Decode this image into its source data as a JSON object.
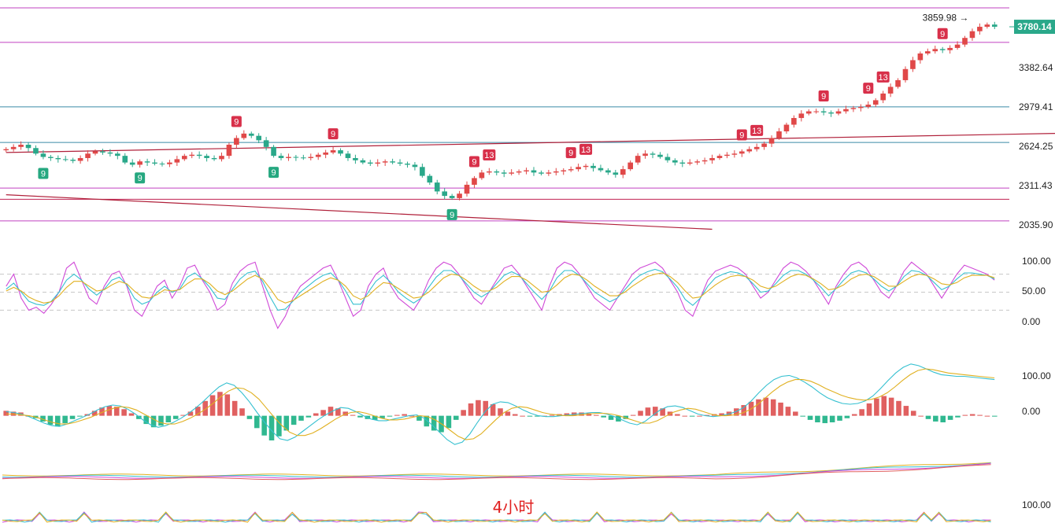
{
  "chart_data": {
    "type": "candlestick",
    "timeframe_label": "4小时",
    "last_price": "3780.14",
    "high_marker": "3859.98",
    "price_axis": {
      "ticks": [
        "3382.64",
        "2979.41",
        "2624.25",
        "2311.43",
        "2035.90"
      ],
      "ylim": [
        1900,
        3950
      ]
    },
    "horizontal_levels": [
      {
        "price": 3950,
        "color": "#c040c0"
      },
      {
        "price": 3640,
        "color": "#c040c0"
      },
      {
        "price": 3060,
        "color": "#3a8aa8"
      },
      {
        "price": 2740,
        "color": "#3a8aa8"
      },
      {
        "price": 2330,
        "color": "#c040c0"
      },
      {
        "price": 2230,
        "color": "#c02050"
      },
      {
        "price": 2035,
        "color": "#c040c0"
      }
    ],
    "trend_lines": [
      {
        "from": [
          0,
          2650
        ],
        "to": [
          280,
          2990
        ],
        "color": "#b0203a"
      },
      {
        "from": [
          0,
          2270
        ],
        "to": [
          95,
          1960
        ],
        "color": "#b0203a"
      }
    ],
    "close_series": [
      2680,
      2700,
      2720,
      2690,
      2640,
      2610,
      2600,
      2590,
      2585,
      2575,
      2600,
      2640,
      2660,
      2650,
      2640,
      2620,
      2560,
      2540,
      2570,
      2560,
      2550,
      2545,
      2560,
      2590,
      2620,
      2630,
      2620,
      2600,
      2590,
      2620,
      2720,
      2780,
      2820,
      2800,
      2760,
      2700,
      2620,
      2600,
      2610,
      2605,
      2600,
      2610,
      2630,
      2650,
      2670,
      2640,
      2600,
      2580,
      2560,
      2550,
      2560,
      2570,
      2560,
      2550,
      2540,
      2520,
      2440,
      2380,
      2300,
      2260,
      2240,
      2280,
      2360,
      2420,
      2470,
      2480,
      2470,
      2460,
      2470,
      2480,
      2490,
      2470,
      2460,
      2470,
      2480,
      2490,
      2500,
      2520,
      2530,
      2510,
      2490,
      2470,
      2450,
      2500,
      2560,
      2620,
      2640,
      2630,
      2610,
      2580,
      2560,
      2550,
      2560,
      2570,
      2580,
      2600,
      2620,
      2630,
      2640,
      2660,
      2680,
      2700,
      2730,
      2780,
      2840,
      2900,
      2960,
      3000,
      3020,
      3020,
      3010,
      3000,
      3020,
      3040,
      3050,
      3060,
      3080,
      3120,
      3180,
      3240,
      3300,
      3400,
      3480,
      3540,
      3560,
      3580,
      3570,
      3590,
      3620,
      3680,
      3740,
      3780,
      3800,
      3780
    ],
    "td_sequential": [
      {
        "index": 5,
        "label": "9",
        "kind": "buy"
      },
      {
        "index": 18,
        "label": "9",
        "kind": "buy"
      },
      {
        "index": 31,
        "label": "9",
        "kind": "sell"
      },
      {
        "index": 36,
        "label": "9",
        "kind": "buy"
      },
      {
        "index": 44,
        "label": "9",
        "kind": "sell"
      },
      {
        "index": 60,
        "label": "9",
        "kind": "buy"
      },
      {
        "index": 63,
        "label": "9",
        "kind": "sell"
      },
      {
        "index": 65,
        "label": "13",
        "kind": "sell"
      },
      {
        "index": 76,
        "label": "9",
        "kind": "sell"
      },
      {
        "index": 78,
        "label": "13",
        "kind": "sell"
      },
      {
        "index": 99,
        "label": "9",
        "kind": "sell"
      },
      {
        "index": 101,
        "label": "13",
        "kind": "sell"
      },
      {
        "index": 110,
        "label": "9",
        "kind": "sell"
      },
      {
        "index": 116,
        "label": "9",
        "kind": "sell"
      },
      {
        "index": 118,
        "label": "13",
        "kind": "sell"
      },
      {
        "index": 126,
        "label": "9",
        "kind": "sell"
      }
    ],
    "oscillator_1": {
      "ticks": [
        "100.00",
        "50.00",
        "0.00"
      ],
      "ylim": [
        -20,
        120
      ],
      "dashed_levels": [
        80,
        50,
        20
      ],
      "series": [
        {
          "color": "#d04ad8",
          "values": [
            60,
            80,
            40,
            20,
            25,
            15,
            30,
            50,
            90,
            100,
            70,
            40,
            30,
            60,
            80,
            85,
            60,
            20,
            10,
            35,
            60,
            70,
            40,
            60,
            90,
            95,
            70,
            50,
            20,
            30,
            65,
            85,
            95,
            100,
            60,
            20,
            -10,
            10,
            40,
            60,
            70,
            80,
            90,
            95,
            70,
            40,
            10,
            20,
            60,
            80,
            90,
            60,
            40,
            30,
            20,
            40,
            70,
            90,
            100,
            95,
            80,
            60,
            40,
            30,
            50,
            70,
            90,
            95,
            80,
            60,
            40,
            20,
            60,
            90,
            100,
            95,
            80,
            60,
            40,
            30,
            20,
            40,
            60,
            80,
            90,
            95,
            100,
            90,
            70,
            50,
            20,
            10,
            40,
            70,
            85,
            90,
            95,
            90,
            80,
            60,
            40,
            50,
            70,
            90,
            100,
            95,
            85,
            70,
            50,
            30,
            60,
            80,
            95,
            100,
            90,
            70,
            50,
            40,
            60,
            85,
            100,
            90,
            80,
            60,
            40,
            60,
            80,
            95,
            90,
            85,
            80,
            70
          ]
        },
        {
          "color": "#35c0d0",
          "values": [
            55,
            65,
            50,
            35,
            30,
            28,
            35,
            50,
            70,
            80,
            70,
            55,
            45,
            55,
            70,
            75,
            62,
            40,
            30,
            35,
            50,
            60,
            50,
            55,
            75,
            82,
            72,
            58,
            40,
            38,
            55,
            72,
            82,
            85,
            68,
            42,
            20,
            22,
            35,
            50,
            60,
            70,
            78,
            82,
            70,
            52,
            30,
            30,
            50,
            68,
            78,
            66,
            50,
            40,
            32,
            40,
            58,
            75,
            86,
            86,
            78,
            64,
            50,
            42,
            50,
            64,
            78,
            84,
            78,
            64,
            50,
            38,
            52,
            74,
            86,
            86,
            78,
            64,
            50,
            42,
            34,
            40,
            54,
            68,
            78,
            84,
            88,
            84,
            72,
            58,
            38,
            28,
            40,
            60,
            74,
            80,
            84,
            82,
            76,
            64,
            50,
            52,
            64,
            78,
            86,
            86,
            80,
            70,
            58,
            44,
            56,
            70,
            82,
            86,
            82,
            72,
            60,
            52,
            60,
            76,
            86,
            84,
            78,
            66,
            54,
            60,
            72,
            82,
            82,
            80,
            78,
            72
          ]
        },
        {
          "color": "#e0b020",
          "values": [
            52,
            58,
            52,
            42,
            36,
            32,
            34,
            44,
            58,
            68,
            68,
            60,
            52,
            54,
            62,
            68,
            64,
            52,
            42,
            40,
            46,
            54,
            52,
            54,
            64,
            72,
            72,
            64,
            52,
            46,
            52,
            62,
            72,
            78,
            72,
            56,
            38,
            32,
            36,
            44,
            52,
            60,
            68,
            74,
            70,
            60,
            44,
            38,
            44,
            56,
            66,
            64,
            56,
            48,
            40,
            42,
            50,
            62,
            74,
            80,
            78,
            70,
            60,
            52,
            52,
            58,
            68,
            76,
            76,
            70,
            60,
            50,
            52,
            62,
            74,
            80,
            78,
            70,
            60,
            52,
            44,
            44,
            50,
            60,
            68,
            76,
            80,
            82,
            76,
            66,
            52,
            40,
            42,
            52,
            62,
            70,
            76,
            78,
            76,
            70,
            60,
            56,
            60,
            68,
            76,
            80,
            78,
            72,
            64,
            54,
            56,
            62,
            72,
            78,
            80,
            76,
            68,
            60,
            60,
            68,
            76,
            80,
            78,
            72,
            64,
            62,
            66,
            74,
            78,
            78,
            78,
            74
          ]
        }
      ]
    },
    "oscillator_2": {
      "ticks": [
        "100.00",
        "0.00"
      ],
      "ylim": [
        -60,
        160
      ],
      "histogram": [
        12,
        10,
        8,
        0,
        -6,
        -14,
        -22,
        -26,
        -18,
        -8,
        -2,
        4,
        12,
        20,
        24,
        22,
        16,
        6,
        -8,
        -20,
        -28,
        -24,
        -16,
        -8,
        2,
        10,
        22,
        36,
        50,
        58,
        52,
        36,
        18,
        -8,
        -30,
        -48,
        -60,
        -50,
        -36,
        -22,
        -12,
        -4,
        6,
        14,
        22,
        18,
        10,
        2,
        -4,
        -8,
        -10,
        -6,
        -2,
        2,
        4,
        0,
        -12,
        -26,
        -36,
        -40,
        -30,
        -10,
        14,
        30,
        38,
        36,
        28,
        18,
        10,
        4,
        0,
        -2,
        -2,
        0,
        2,
        4,
        6,
        8,
        8,
        6,
        2,
        -4,
        -10,
        -14,
        -8,
        2,
        12,
        20,
        22,
        18,
        10,
        4,
        0,
        -2,
        0,
        2,
        4,
        6,
        10,
        18,
        26,
        34,
        40,
        44,
        40,
        32,
        22,
        10,
        -2,
        -10,
        -16,
        -18,
        -16,
        -12,
        -6,
        4,
        16,
        30,
        42,
        48,
        44,
        36,
        24,
        12,
        0,
        -8,
        -14,
        -16,
        -10,
        -4,
        2,
        4,
        2,
        0,
        -2
      ],
      "series": [
        {
          "color": "#35c0d0",
          "values": [
            10,
            8,
            4,
            -2,
            -10,
            -18,
            -24,
            -26,
            -20,
            -12,
            -4,
            4,
            14,
            22,
            26,
            24,
            16,
            4,
            -10,
            -22,
            -28,
            -24,
            -16,
            -6,
            6,
            20,
            36,
            54,
            70,
            80,
            74,
            56,
            34,
            8,
            -16,
            -38,
            -56,
            -60,
            -52,
            -38,
            -24,
            -10,
            2,
            12,
            20,
            18,
            10,
            0,
            -8,
            -12,
            -12,
            -8,
            -4,
            0,
            2,
            -6,
            -22,
            -40,
            -58,
            -70,
            -64,
            -44,
            -16,
            10,
            28,
            34,
            32,
            24,
            14,
            6,
            0,
            -2,
            -2,
            0,
            2,
            4,
            6,
            8,
            8,
            4,
            -2,
            -10,
            -18,
            -22,
            -14,
            0,
            14,
            22,
            24,
            20,
            12,
            4,
            0,
            -2,
            0,
            4,
            10,
            20,
            36,
            56,
            74,
            88,
            96,
            98,
            92,
            82,
            70,
            56,
            44,
            36,
            30,
            28,
            30,
            36,
            48,
            66,
            86,
            104,
            118,
            126,
            122,
            114,
            106,
            100,
            98,
            96,
            96,
            94,
            92,
            90,
            88
          ]
        },
        {
          "color": "#e0b020",
          "values": [
            4,
            4,
            2,
            0,
            -4,
            -10,
            -16,
            -20,
            -20,
            -16,
            -10,
            -4,
            4,
            12,
            18,
            22,
            20,
            14,
            4,
            -6,
            -16,
            -20,
            -20,
            -14,
            -6,
            4,
            16,
            30,
            46,
            60,
            68,
            66,
            56,
            40,
            18,
            -4,
            -24,
            -40,
            -48,
            -48,
            -42,
            -32,
            -20,
            -8,
            2,
            8,
            10,
            6,
            0,
            -6,
            -10,
            -10,
            -8,
            -4,
            0,
            -2,
            -10,
            -22,
            -36,
            -50,
            -58,
            -56,
            -44,
            -26,
            -8,
            8,
            18,
            22,
            20,
            14,
            8,
            4,
            2,
            0,
            0,
            2,
            4,
            6,
            6,
            4,
            0,
            -6,
            -12,
            -18,
            -18,
            -12,
            -2,
            8,
            14,
            18,
            16,
            10,
            4,
            0,
            0,
            2,
            6,
            14,
            26,
            42,
            58,
            72,
            82,
            88,
            88,
            84,
            76,
            66,
            58,
            50,
            44,
            40,
            38,
            40,
            46,
            56,
            70,
            86,
            100,
            110,
            114,
            112,
            108,
            104,
            102,
            100,
            98,
            96,
            94,
            92
          ]
        }
      ]
    },
    "oscillator_3": {
      "ticks": [
        "100.00"
      ],
      "ylim": [
        0,
        120
      ]
    }
  }
}
